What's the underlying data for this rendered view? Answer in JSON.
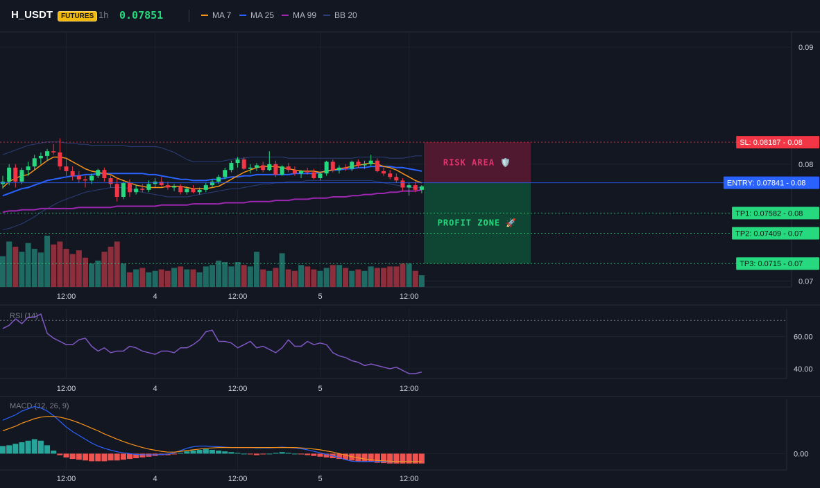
{
  "header": {
    "symbol": "H_USDT",
    "badge": "FUTURES",
    "timeframe": "1h",
    "price": "0.07851",
    "legend": [
      {
        "label": "MA 7",
        "color": "#f7931a"
      },
      {
        "label": "MA 25",
        "color": "#2962ff"
      },
      {
        "label": "MA 99",
        "color": "#9c27b0"
      },
      {
        "label": "BB 20",
        "color": "#2c3e7a"
      }
    ]
  },
  "colors": {
    "up": "#26d97f",
    "down": "#f23645",
    "vol_up": "#1f6b63",
    "vol_down": "#8c2e3b",
    "entry": "#2962ff",
    "sl": "#f23645",
    "tp": "#26d97f",
    "rsi": "#7e57c2",
    "macd": "#2962ff",
    "signal": "#f7931a",
    "hist_up": "#26a69a",
    "hist_down": "#ef5350"
  },
  "chart_data": {
    "type": "candlestick",
    "price_axis": {
      "ticks": [
        {
          "value": 0.09,
          "label": "0.09"
        },
        {
          "value": 0.08,
          "label": "0.08"
        },
        {
          "value": 0.07,
          "label": "0.07"
        }
      ],
      "range": [
        0.0695,
        0.0913
      ]
    },
    "time_axis": [
      "12:00",
      "4",
      "12:00",
      "5",
      "12:00"
    ],
    "ohlc": [
      [
        0.0783,
        0.079,
        0.0779,
        0.0785
      ],
      [
        0.0785,
        0.08,
        0.0782,
        0.0797
      ],
      [
        0.0797,
        0.08,
        0.078,
        0.0785
      ],
      [
        0.0785,
        0.0797,
        0.0783,
        0.0795
      ],
      [
        0.0795,
        0.0802,
        0.079,
        0.0798
      ],
      [
        0.0798,
        0.0808,
        0.0795,
        0.0805
      ],
      [
        0.0805,
        0.081,
        0.08,
        0.0807
      ],
      [
        0.0807,
        0.0813,
        0.0803,
        0.0811
      ],
      [
        0.0811,
        0.0817,
        0.0808,
        0.081
      ],
      [
        0.081,
        0.0822,
        0.0795,
        0.0798
      ],
      [
        0.0798,
        0.0804,
        0.079,
        0.0794
      ],
      [
        0.0794,
        0.0798,
        0.0786,
        0.079
      ],
      [
        0.079,
        0.0794,
        0.0784,
        0.0787
      ],
      [
        0.0787,
        0.079,
        0.078,
        0.0786
      ],
      [
        0.0786,
        0.0792,
        0.0783,
        0.079
      ],
      [
        0.079,
        0.0796,
        0.0788,
        0.0795
      ],
      [
        0.0795,
        0.0797,
        0.0785,
        0.0788
      ],
      [
        0.0788,
        0.0792,
        0.078,
        0.0783
      ],
      [
        0.0783,
        0.0788,
        0.0768,
        0.0772
      ],
      [
        0.0772,
        0.0785,
        0.077,
        0.0784
      ],
      [
        0.0784,
        0.0787,
        0.0772,
        0.0776
      ],
      [
        0.0776,
        0.0782,
        0.0774,
        0.0779
      ],
      [
        0.0779,
        0.0783,
        0.0776,
        0.0778
      ],
      [
        0.0778,
        0.0786,
        0.0776,
        0.0783
      ],
      [
        0.0783,
        0.0788,
        0.078,
        0.0785
      ],
      [
        0.0785,
        0.0789,
        0.0781,
        0.0782
      ],
      [
        0.0782,
        0.0785,
        0.0778,
        0.078
      ],
      [
        0.078,
        0.0783,
        0.0777,
        0.0781
      ],
      [
        0.0781,
        0.0783,
        0.0774,
        0.0776
      ],
      [
        0.0776,
        0.0781,
        0.0774,
        0.0779
      ],
      [
        0.0779,
        0.0782,
        0.0775,
        0.0776
      ],
      [
        0.0776,
        0.078,
        0.0774,
        0.0778
      ],
      [
        0.0778,
        0.0784,
        0.0776,
        0.0782
      ],
      [
        0.0782,
        0.0787,
        0.078,
        0.0785
      ],
      [
        0.0785,
        0.0791,
        0.0783,
        0.0789
      ],
      [
        0.0789,
        0.0797,
        0.0787,
        0.0795
      ],
      [
        0.0795,
        0.0803,
        0.0793,
        0.0801
      ],
      [
        0.0801,
        0.0806,
        0.0797,
        0.0804
      ],
      [
        0.0804,
        0.0806,
        0.0795,
        0.0796
      ],
      [
        0.0796,
        0.08,
        0.0792,
        0.0797
      ],
      [
        0.0797,
        0.0801,
        0.0794,
        0.0799
      ],
      [
        0.0799,
        0.0802,
        0.0793,
        0.0795
      ],
      [
        0.0795,
        0.0811,
        0.0794,
        0.08
      ],
      [
        0.08,
        0.0803,
        0.0789,
        0.0791
      ],
      [
        0.0791,
        0.0799,
        0.079,
        0.0798
      ],
      [
        0.0798,
        0.0801,
        0.0793,
        0.0795
      ],
      [
        0.0795,
        0.0798,
        0.079,
        0.0792
      ],
      [
        0.0792,
        0.0795,
        0.0788,
        0.0794
      ],
      [
        0.0794,
        0.0797,
        0.0791,
        0.0793
      ],
      [
        0.0793,
        0.0796,
        0.0787,
        0.0788
      ],
      [
        0.0788,
        0.0793,
        0.0786,
        0.0792
      ],
      [
        0.0792,
        0.0803,
        0.079,
        0.0802
      ],
      [
        0.0802,
        0.0804,
        0.0793,
        0.0795
      ],
      [
        0.0795,
        0.0799,
        0.0792,
        0.0797
      ],
      [
        0.0797,
        0.08,
        0.0794,
        0.0796
      ],
      [
        0.0796,
        0.0803,
        0.0794,
        0.0802
      ],
      [
        0.0802,
        0.0804,
        0.0797,
        0.0799
      ],
      [
        0.0799,
        0.0803,
        0.0796,
        0.08
      ],
      [
        0.08,
        0.0808,
        0.0798,
        0.0803
      ],
      [
        0.0803,
        0.0805,
        0.0793,
        0.0794
      ],
      [
        0.0794,
        0.0797,
        0.079,
        0.0792
      ],
      [
        0.0792,
        0.0795,
        0.0787,
        0.0789
      ],
      [
        0.0789,
        0.0792,
        0.0784,
        0.0786
      ],
      [
        0.0786,
        0.0788,
        0.0777,
        0.078
      ],
      [
        0.078,
        0.0784,
        0.0773,
        0.0782
      ],
      [
        0.0782,
        0.0785,
        0.0776,
        0.0778
      ],
      [
        0.0778,
        0.0782,
        0.0775,
        0.0781
      ]
    ],
    "volume": [
      42,
      62,
      55,
      48,
      60,
      52,
      47,
      70,
      58,
      62,
      52,
      45,
      50,
      40,
      32,
      36,
      48,
      55,
      62,
      32,
      20,
      24,
      26,
      20,
      22,
      24,
      22,
      26,
      28,
      24,
      24,
      20,
      28,
      30,
      36,
      34,
      28,
      34,
      30,
      28,
      48,
      24,
      22,
      26,
      46,
      24,
      22,
      30,
      28,
      24,
      22,
      26,
      30,
      30,
      26,
      22,
      24,
      22,
      28,
      26,
      26,
      28,
      28,
      32,
      32,
      22,
      16
    ],
    "ma7": [
      0.078,
      0.0785,
      0.0788,
      0.079,
      0.0791,
      0.0795,
      0.0799,
      0.0803,
      0.0806,
      0.0806,
      0.0805,
      0.0802,
      0.0799,
      0.0796,
      0.0794,
      0.0793,
      0.0792,
      0.0791,
      0.0788,
      0.0786,
      0.0784,
      0.0782,
      0.0781,
      0.078,
      0.078,
      0.078,
      0.0781,
      0.0781,
      0.0781,
      0.078,
      0.0779,
      0.0779,
      0.0779,
      0.078,
      0.0781,
      0.0784,
      0.0787,
      0.079,
      0.0793,
      0.0795,
      0.0797,
      0.0798,
      0.0798,
      0.0798,
      0.0797,
      0.0796,
      0.0795,
      0.0794,
      0.0794,
      0.0794,
      0.0793,
      0.0794,
      0.0795,
      0.0796,
      0.0797,
      0.0798,
      0.0799,
      0.08,
      0.0801,
      0.08,
      0.0798,
      0.0797,
      0.0795,
      0.0792,
      0.0789,
      0.0786,
      0.0784
    ],
    "ma25": [
      0.0773,
      0.0775,
      0.0777,
      0.0779,
      0.078,
      0.0782,
      0.0784,
      0.0786,
      0.0787,
      0.0788,
      0.0789,
      0.079,
      0.079,
      0.0791,
      0.0791,
      0.0792,
      0.0792,
      0.0792,
      0.0792,
      0.0792,
      0.0792,
      0.0792,
      0.0792,
      0.0791,
      0.0791,
      0.079,
      0.0789,
      0.0788,
      0.0787,
      0.0787,
      0.0786,
      0.0786,
      0.0786,
      0.0787,
      0.0787,
      0.0788,
      0.0789,
      0.0789,
      0.079,
      0.079,
      0.0791,
      0.0791,
      0.0791,
      0.0791,
      0.0791,
      0.0791,
      0.0792,
      0.0792,
      0.0792,
      0.0792,
      0.0793,
      0.0794,
      0.0795,
      0.0795,
      0.0796,
      0.0796,
      0.0797,
      0.0797,
      0.0798,
      0.0798,
      0.0798,
      0.0798,
      0.0797,
      0.0797,
      0.0796,
      0.0795,
      0.0794
    ],
    "ma99": [
      0.0759,
      0.076,
      0.076,
      0.0761,
      0.0761,
      0.0761,
      0.0762,
      0.0762,
      0.0762,
      0.0762,
      0.0762,
      0.0762,
      0.0763,
      0.0763,
      0.0763,
      0.0763,
      0.0763,
      0.0763,
      0.0764,
      0.0764,
      0.0764,
      0.0764,
      0.0764,
      0.0764,
      0.0764,
      0.0765,
      0.0765,
      0.0765,
      0.0765,
      0.0765,
      0.0766,
      0.0766,
      0.0766,
      0.0766,
      0.0766,
      0.0767,
      0.0767,
      0.0767,
      0.0767,
      0.0768,
      0.0768,
      0.0768,
      0.0768,
      0.0769,
      0.0769,
      0.0769,
      0.077,
      0.077,
      0.077,
      0.0771,
      0.0771,
      0.0771,
      0.0772,
      0.0772,
      0.0772,
      0.0773,
      0.0773,
      0.0774,
      0.0774,
      0.0775,
      0.0775,
      0.0776,
      0.0776,
      0.0777,
      0.0777,
      0.0777,
      0.0778
    ],
    "bb_upper": [
      0.0808,
      0.081,
      0.0812,
      0.0814,
      0.0816,
      0.0817,
      0.0818,
      0.0819,
      0.0819,
      0.0819,
      0.0818,
      0.0818,
      0.0817,
      0.0817,
      0.0816,
      0.0816,
      0.0816,
      0.0816,
      0.0816,
      0.0816,
      0.0815,
      0.0815,
      0.0815,
      0.0815,
      0.0815,
      0.0814,
      0.0812,
      0.081,
      0.0807,
      0.0804,
      0.0802,
      0.0802,
      0.0802,
      0.0802,
      0.0802,
      0.0803,
      0.0804,
      0.0805,
      0.0805,
      0.0806,
      0.0806,
      0.0806,
      0.0806,
      0.0806,
      0.0806,
      0.0805,
      0.0805,
      0.0805,
      0.0805,
      0.0805,
      0.0805,
      0.0805,
      0.0805,
      0.0805,
      0.0805,
      0.0805,
      0.0806,
      0.0806,
      0.0806,
      0.0806,
      0.0806,
      0.0805,
      0.0805,
      0.0805,
      0.0806,
      0.0807,
      0.0807
    ],
    "bb_lower": [
      0.0744,
      0.0745,
      0.0747,
      0.0749,
      0.0752,
      0.0755,
      0.0759,
      0.0762,
      0.0765,
      0.0768,
      0.077,
      0.0772,
      0.0774,
      0.0776,
      0.0777,
      0.0778,
      0.0779,
      0.078,
      0.078,
      0.078,
      0.0779,
      0.0777,
      0.0776,
      0.0775,
      0.0774,
      0.0773,
      0.0772,
      0.0772,
      0.0772,
      0.0772,
      0.0773,
      0.0774,
      0.0775,
      0.0776,
      0.0777,
      0.0778,
      0.0779,
      0.0779,
      0.078,
      0.0781,
      0.0782,
      0.0783,
      0.0783,
      0.0784,
      0.0784,
      0.0785,
      0.0785,
      0.0785,
      0.0786,
      0.0786,
      0.0786,
      0.0786,
      0.0786,
      0.0786,
      0.0786,
      0.0786,
      0.0786,
      0.0786,
      0.0786,
      0.0785,
      0.0784,
      0.0783,
      0.0782,
      0.0781,
      0.078,
      0.078,
      0.078
    ]
  },
  "levels": {
    "entry": {
      "value": 0.07841,
      "label": "ENTRY: 0.07841",
      "axis": "0.08"
    },
    "sl": {
      "value": 0.08187,
      "label": "SL: 0.08187",
      "axis": "0.08"
    },
    "tp1": {
      "value": 0.07582,
      "label": "TP1: 0.07582",
      "axis": "0.08"
    },
    "tp2": {
      "value": 0.07409,
      "label": "TP2: 0.07409",
      "axis": "0.07"
    },
    "tp3": {
      "value": 0.0715,
      "label": "TP3: 0.0715",
      "axis": "0.07"
    }
  },
  "zones": {
    "risk_label": "RISK AREA 🛡️",
    "profit_label": "PROFIT ZONE 🚀"
  },
  "rsi": {
    "label": "RSI (14)",
    "ticks": [
      {
        "value": 60,
        "label": "60.00"
      },
      {
        "value": 40,
        "label": "40.00"
      }
    ],
    "range": [
      34,
      77
    ],
    "overbought": 70,
    "values": [
      65,
      67,
      71,
      68,
      72,
      72,
      74,
      62,
      59,
      57,
      55,
      55,
      58,
      59,
      54,
      51,
      53,
      50,
      51,
      51,
      54,
      53,
      51,
      50,
      49,
      51,
      51,
      50,
      53,
      53,
      55,
      58,
      63,
      64,
      57,
      57,
      56,
      53,
      55,
      57,
      53,
      54,
      52,
      50,
      53,
      58,
      54,
      54,
      57,
      55,
      56,
      55,
      50,
      48,
      47,
      45,
      44,
      42,
      43,
      42,
      41,
      40,
      41,
      39,
      37,
      37,
      38
    ]
  },
  "macd": {
    "label": "MACD (12, 26, 9)",
    "ticks": [
      {
        "value": 0,
        "label": "0.00"
      }
    ],
    "range": [
      -0.00043,
      0.00143
    ],
    "macd_values": [
      0.00088,
      0.00095,
      0.00102,
      0.00112,
      0.00118,
      0.00124,
      0.0012,
      0.00112,
      0.001,
      0.00085,
      0.0007,
      0.00058,
      0.00048,
      0.00038,
      0.00028,
      0.0002,
      0.00014,
      9e-05,
      5e-05,
      2e-05,
      0.0,
      -2e-05,
      -3e-05,
      -3e-05,
      -3e-05,
      -2e-05,
      -1e-05,
      2e-05,
      8e-05,
      0.00014,
      0.00018,
      0.0002,
      0.0002,
      0.00019,
      0.00018,
      0.00017,
      0.00016,
      0.00016,
      0.00016,
      0.00016,
      0.00015,
      0.00015,
      0.00015,
      0.00016,
      0.00017,
      0.00016,
      0.00015,
      0.00013,
      0.0001,
      6e-05,
      2e-05,
      -2e-05,
      -6e-05,
      -0.0001,
      -0.00016,
      -0.0002,
      -0.00021,
      -0.00021,
      -0.00021,
      -0.00021,
      -0.00021,
      -0.00021,
      -0.00021,
      -0.00021,
      -0.00021,
      -0.00021,
      -0.00021
    ],
    "signal_values": [
      0.0006,
      0.00066,
      0.00072,
      0.0008,
      0.00086,
      0.00092,
      0.00096,
      0.00098,
      0.00098,
      0.00096,
      0.00092,
      0.00087,
      0.00081,
      0.00074,
      0.00067,
      0.0006,
      0.00052,
      0.00045,
      0.00038,
      0.00032,
      0.00026,
      0.00021,
      0.00016,
      0.00012,
      9e-05,
      6e-05,
      4e-05,
      4e-05,
      6e-05,
      8e-05,
      0.0001,
      0.00012,
      0.00014,
      0.00015,
      0.00016,
      0.00016,
      0.00016,
      0.00016,
      0.00016,
      0.00016,
      0.00016,
      0.00016,
      0.00016,
      0.00016,
      0.00016,
      0.00016,
      0.00016,
      0.00015,
      0.00014,
      0.00012,
      0.0001,
      7e-05,
      4e-05,
      0.0,
      -4e-05,
      -8e-05,
      -0.00011,
      -0.00014,
      -0.00016,
      -0.00018,
      -0.00019,
      -0.0002,
      -0.00021,
      -0.00021,
      -0.00021,
      -0.00021,
      -0.00021
    ],
    "hist": [
      0.0002,
      0.00022,
      0.00026,
      0.0003,
      0.00034,
      0.00038,
      0.00034,
      0.00022,
      8e-05,
      -4e-05,
      -0.0001,
      -0.00014,
      -0.00016,
      -0.00018,
      -0.0002,
      -0.0002,
      -0.0002,
      -0.00018,
      -0.00018,
      -0.00016,
      -0.00014,
      -0.00012,
      -0.0001,
      -8e-05,
      -6e-05,
      -4e-05,
      -4e-05,
      -2e-05,
      2e-05,
      6e-05,
      8e-05,
      0.0001,
      0.00012,
      0.0001,
      8e-05,
      6e-05,
      4e-05,
      2e-05,
      0.0,
      -2e-05,
      -4e-05,
      -2e-05,
      0.0,
      2e-05,
      4e-05,
      2e-05,
      0.0,
      -2e-05,
      -4e-05,
      -6e-05,
      -8e-05,
      -0.0001,
      -0.00012,
      -0.00014,
      -0.00016,
      -0.00018,
      -0.0002,
      -0.00022,
      -0.00022,
      -0.00024,
      -0.00025,
      -0.00026,
      -0.00026,
      -0.00026,
      -0.00026,
      -0.00026,
      -0.00026
    ]
  }
}
